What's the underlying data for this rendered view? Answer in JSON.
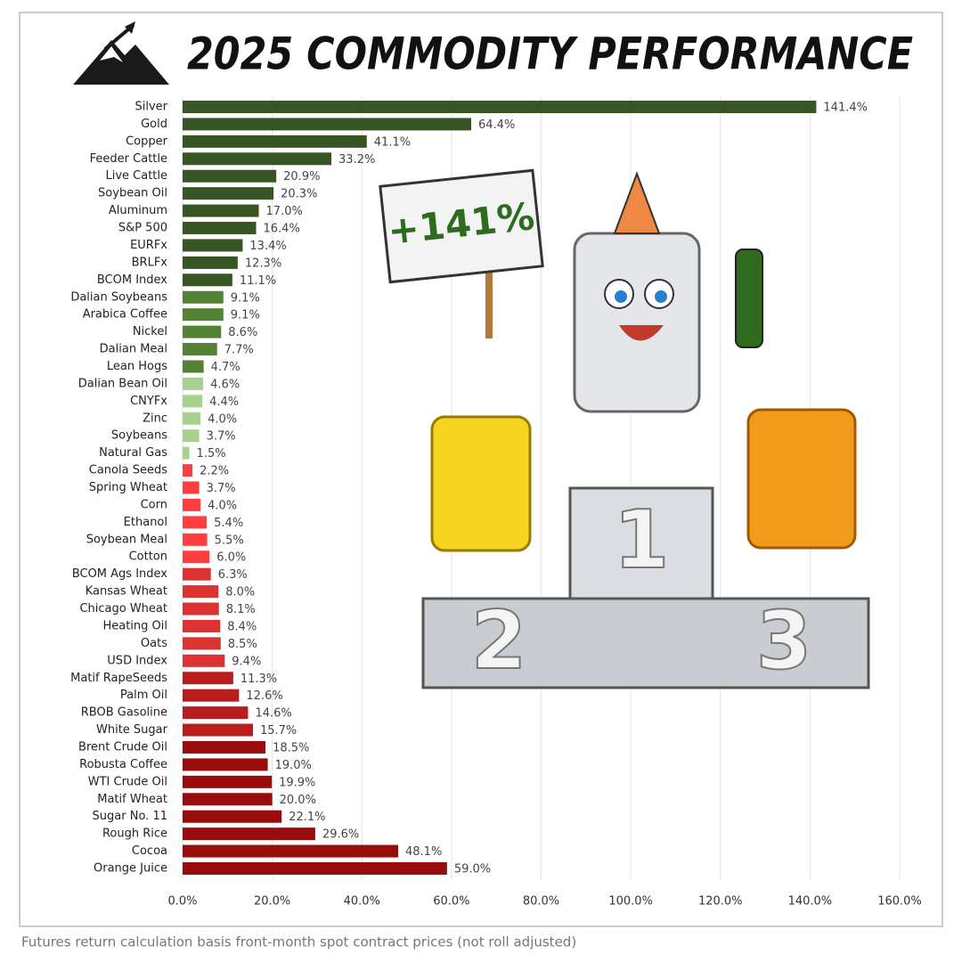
{
  "chart_data": {
    "type": "hbar",
    "title": "2025 COMMODITY PERFORMANCE",
    "note": "Futures return calculation basis front-month spot contract prices (not roll adjusted)",
    "annotation": "+141%",
    "podium_labels": [
      "1",
      "2",
      "3"
    ],
    "categories": [
      "Silver",
      "Gold",
      "Copper",
      "Feeder Cattle",
      "Live Cattle",
      "Soybean Oil",
      "Aluminum",
      "S&P 500",
      "EURFx",
      "BRLFx",
      "BCOM Index",
      "Dalian Soybeans",
      "Arabica Coffee",
      "Nickel",
      "Dalian Meal",
      "Lean Hogs",
      "Dalian Bean Oil",
      "CNYFx",
      "Zinc",
      "Soybeans",
      "Natural Gas",
      "Canola Seeds",
      "Spring Wheat",
      "Corn",
      "Ethanol",
      "Soybean Meal",
      "Cotton",
      "BCOM Ags Index",
      "Kansas Wheat",
      "Chicago Wheat",
      "Heating Oil",
      "Oats",
      "USD Index",
      "Matif RapeSeeds",
      "Palm Oil",
      "RBOB Gasoline",
      "White Sugar",
      "Brent Crude Oil",
      "Robusta Coffee",
      "WTI Crude Oil",
      "Matif Wheat",
      "Sugar No. 11",
      "Rough Rice",
      "Cocoa",
      "Orange Juice"
    ],
    "values": [
      141.4,
      64.4,
      41.1,
      33.2,
      20.9,
      20.3,
      17.0,
      16.4,
      13.4,
      12.3,
      11.1,
      9.1,
      9.1,
      8.6,
      7.7,
      4.7,
      4.6,
      4.4,
      4.0,
      3.7,
      1.5,
      2.2,
      3.7,
      4.0,
      5.4,
      5.5,
      6.0,
      6.3,
      8.0,
      8.1,
      8.4,
      8.5,
      9.4,
      11.3,
      12.6,
      14.6,
      15.7,
      18.5,
      19.0,
      19.9,
      20.0,
      22.1,
      29.6,
      48.1,
      59.0
    ],
    "value_labels": [
      "141.4%",
      "64.4%",
      "41.1%",
      "33.2%",
      "20.9%",
      "20.3%",
      "17.0%",
      "16.4%",
      "13.4%",
      "12.3%",
      "11.1%",
      "9.1%",
      "9.1%",
      "8.6%",
      "7.7%",
      "4.7%",
      "4.6%",
      "4.4%",
      "4.0%",
      "3.7%",
      "1.5%",
      "2.2%",
      "3.7%",
      "4.0%",
      "5.4%",
      "5.5%",
      "6.0%",
      "6.3%",
      "8.0%",
      "8.1%",
      "8.4%",
      "8.5%",
      "9.4%",
      "11.3%",
      "12.6%",
      "14.6%",
      "15.7%",
      "18.5%",
      "19.0%",
      "19.9%",
      "20.0%",
      "22.1%",
      "29.6%",
      "48.1%",
      "59.0%"
    ],
    "colors": [
      "#375623",
      "#375623",
      "#375623",
      "#375623",
      "#375623",
      "#375623",
      "#375623",
      "#375623",
      "#375623",
      "#375623",
      "#375623",
      "#548235",
      "#548235",
      "#548235",
      "#548235",
      "#548235",
      "#a9d18e",
      "#a9d18e",
      "#a9d18e",
      "#a9d18e",
      "#a9d18e",
      "#ff3f3f",
      "#ff3f3f",
      "#ff3f3f",
      "#ff3f3f",
      "#ff3f3f",
      "#ff3f3f",
      "#dc3232",
      "#dc3232",
      "#dc3232",
      "#dc3232",
      "#dc3232",
      "#dc3232",
      "#b81c1c",
      "#b81c1c",
      "#b81c1c",
      "#b81c1c",
      "#980c0c",
      "#980c0c",
      "#980c0c",
      "#980c0c",
      "#980c0c",
      "#980c0c",
      "#980c0c",
      "#980c0c"
    ],
    "xlim": [
      0,
      160
    ],
    "xticks": [
      {
        "value": 0,
        "label": "0.0%"
      },
      {
        "value": 20,
        "label": "20.0%"
      },
      {
        "value": 40,
        "label": "40.0%"
      },
      {
        "value": 60,
        "label": "60.0%"
      },
      {
        "value": 80,
        "label": "80.0%"
      },
      {
        "value": 100,
        "label": "100.0%"
      },
      {
        "value": 120,
        "label": "120.0%"
      },
      {
        "value": 140,
        "label": "140.0%"
      },
      {
        "value": 160,
        "label": "160.0%"
      }
    ],
    "grid": true
  }
}
